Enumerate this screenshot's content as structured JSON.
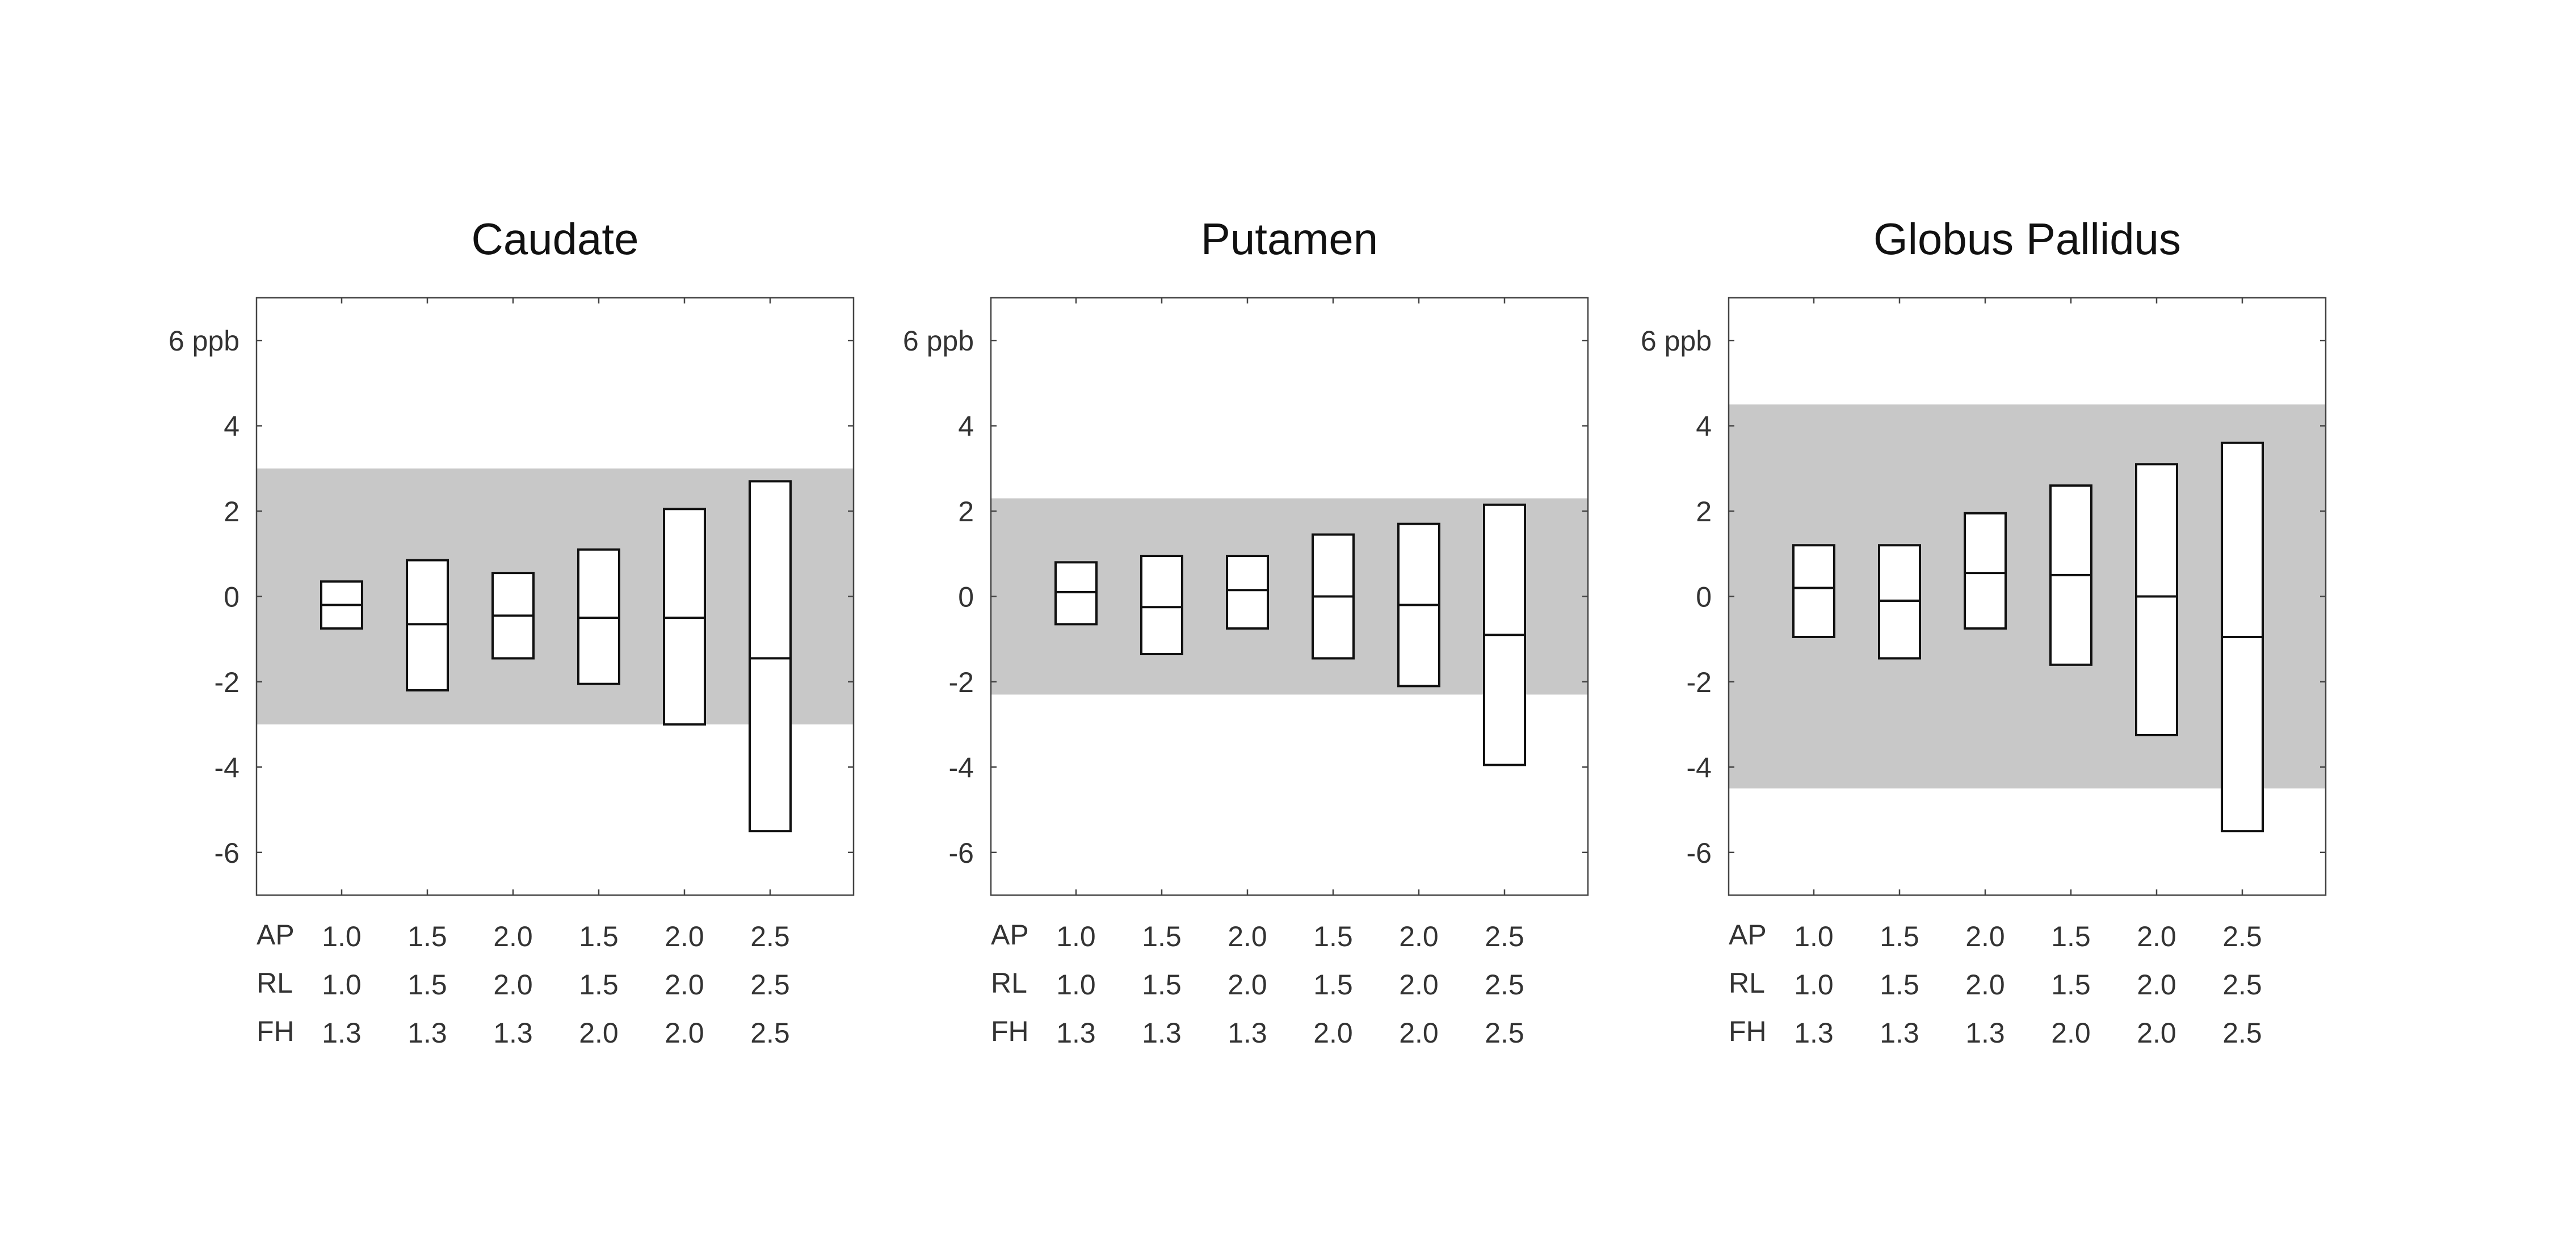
{
  "colors": {
    "band": "#c8c8c8",
    "frame": "#444444",
    "box_stroke": "#111111",
    "box_fill": "#ffffff",
    "text": "#333333"
  },
  "chart_data": {
    "common": {
      "type": "box",
      "ylim": [
        -7,
        7
      ],
      "yticks": [
        {
          "value": 6,
          "label": "6 ppb"
        },
        {
          "value": 4,
          "label": "4"
        },
        {
          "value": 2,
          "label": "2"
        },
        {
          "value": 0,
          "label": "0"
        },
        {
          "value": -2,
          "label": "-2"
        },
        {
          "value": -4,
          "label": "-4"
        },
        {
          "value": -6,
          "label": "-6"
        }
      ],
      "row_labels": [
        "AP",
        "RL",
        "FH"
      ],
      "rows": {
        "AP": [
          "1.0",
          "1.5",
          "2.0",
          "1.5",
          "2.0",
          "2.5"
        ],
        "RL": [
          "1.0",
          "1.5",
          "2.0",
          "1.5",
          "2.0",
          "2.5"
        ],
        "FH": [
          "1.3",
          "1.3",
          "1.3",
          "2.0",
          "2.0",
          "2.5"
        ]
      }
    },
    "panels": [
      {
        "title": "Caudate",
        "band": [
          -3.0,
          3.0
        ],
        "boxes": [
          {
            "low": -0.75,
            "mid": -0.2,
            "high": 0.35
          },
          {
            "low": -2.2,
            "mid": -0.65,
            "high": 0.85
          },
          {
            "low": -1.45,
            "mid": -0.45,
            "high": 0.55
          },
          {
            "low": -2.05,
            "mid": -0.5,
            "high": 1.1
          },
          {
            "low": -3.0,
            "mid": -0.5,
            "high": 2.05
          },
          {
            "low": -5.5,
            "mid": -1.45,
            "high": 2.7
          }
        ]
      },
      {
        "title": "Putamen",
        "band": [
          -2.3,
          2.3
        ],
        "boxes": [
          {
            "low": -0.65,
            "mid": 0.1,
            "high": 0.8
          },
          {
            "low": -1.35,
            "mid": -0.25,
            "high": 0.95
          },
          {
            "low": -0.75,
            "mid": 0.15,
            "high": 0.95
          },
          {
            "low": -1.45,
            "mid": 0.0,
            "high": 1.45
          },
          {
            "low": -2.1,
            "mid": -0.2,
            "high": 1.7
          },
          {
            "low": -3.95,
            "mid": -0.9,
            "high": 2.15
          }
        ]
      },
      {
        "title": "Globus Pallidus",
        "band": [
          -4.5,
          4.5
        ],
        "boxes": [
          {
            "low": -0.95,
            "mid": 0.2,
            "high": 1.2
          },
          {
            "low": -1.45,
            "mid": -0.1,
            "high": 1.2
          },
          {
            "low": -0.75,
            "mid": 0.55,
            "high": 1.95
          },
          {
            "low": -1.6,
            "mid": 0.5,
            "high": 2.6
          },
          {
            "low": -3.25,
            "mid": 0.0,
            "high": 3.1
          },
          {
            "low": -5.5,
            "mid": -0.95,
            "high": 3.6
          }
        ]
      }
    ]
  }
}
